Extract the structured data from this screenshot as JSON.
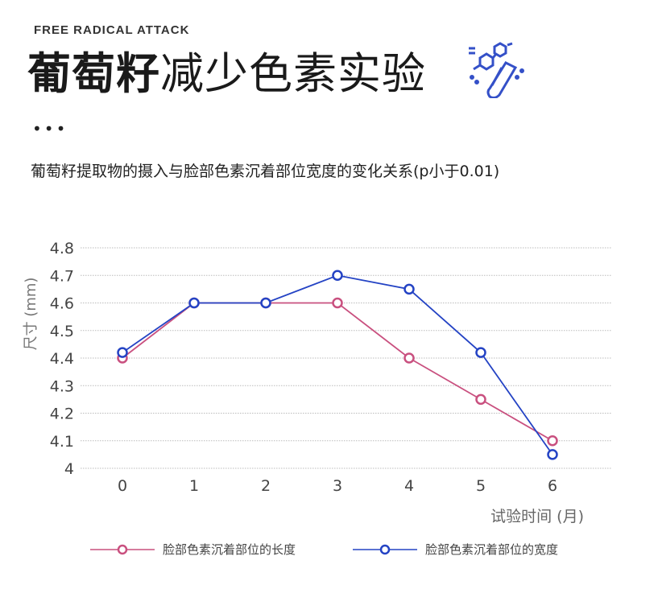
{
  "header": {
    "eyebrow": "FREE RADICAL ATTACK",
    "title_bold": "葡萄籽",
    "title_rest": "减少色素实验",
    "icon": "science-test-tube-molecule-icon",
    "dots": "•••",
    "subtitle": "葡萄籽提取物的摄入与脸部色素沉着部位宽度的变化关系(p小于0.01)"
  },
  "chart_data": {
    "type": "line",
    "title": "葡萄籽提取物的摄入与脸部色素沉着部位宽度的变化关系(p小于0.01)",
    "xlabel": "试验时间 (月)",
    "ylabel": "尺寸 (mm)",
    "x": [
      0,
      1,
      2,
      3,
      4,
      5,
      6
    ],
    "x_tick_labels": [
      "0",
      "1",
      "2",
      "3",
      "4",
      "5",
      "6"
    ],
    "y_tick_labels": [
      "4.8",
      "4.7",
      "4.6",
      "4.5",
      "4.4",
      "4.3",
      "4.2",
      "4.1",
      "4"
    ],
    "ylim": [
      4.0,
      4.8
    ],
    "grid": "horizontal dotted",
    "legend_position": "bottom",
    "series": [
      {
        "name": "脸部色素沉着部位的长度",
        "color": "#c9507f",
        "values": [
          4.4,
          4.6,
          4.6,
          4.6,
          4.4,
          4.25,
          4.1
        ]
      },
      {
        "name": "脸部色素沉着部位的宽度",
        "color": "#2443c4",
        "values": [
          4.42,
          4.6,
          4.6,
          4.7,
          4.65,
          4.42,
          4.05
        ]
      }
    ]
  }
}
